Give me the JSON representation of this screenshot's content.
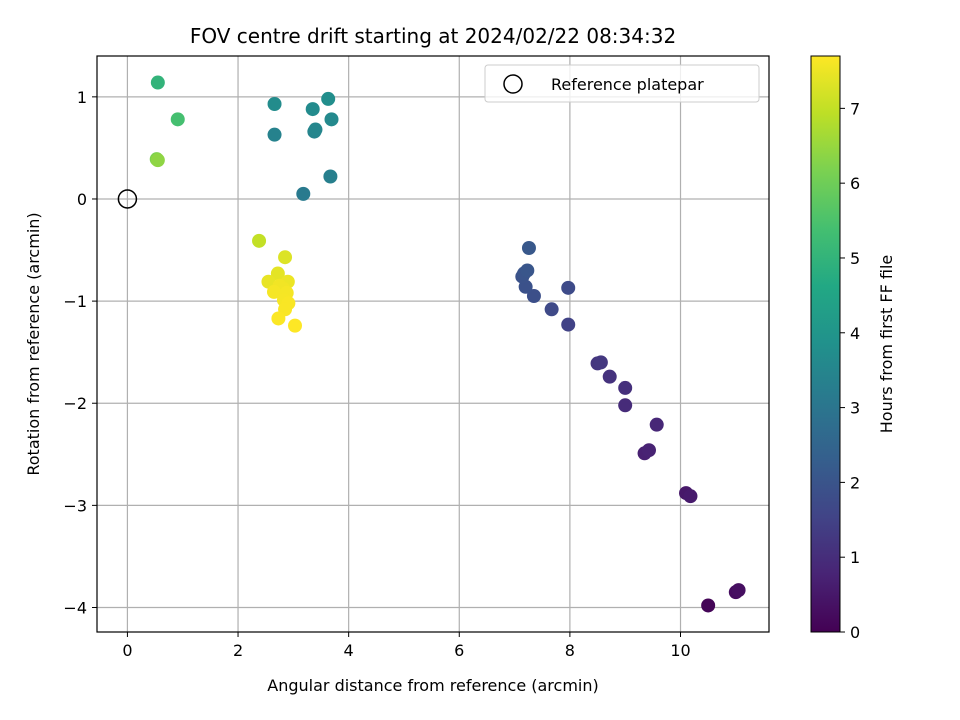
{
  "chart_data": {
    "type": "scatter",
    "title": "FOV centre drift starting at 2024/02/22 08:34:32",
    "xlabel": "Angular distance from reference (arcmin)",
    "ylabel": "Rotation from reference (arcmin)",
    "xlim": [
      -0.55,
      11.6
    ],
    "ylim": [
      -4.24,
      1.4
    ],
    "xticks": [
      0,
      2,
      4,
      6,
      8,
      10
    ],
    "xtick_labels": [
      "0",
      "2",
      "4",
      "6",
      "8",
      "10"
    ],
    "yticks": [
      1,
      0,
      -1,
      -2,
      -3,
      -4
    ],
    "ytick_labels": [
      "1",
      "0",
      "−1",
      "−2",
      "−3",
      "−4"
    ],
    "grid": true,
    "legend": {
      "position": "upper right",
      "entries": [
        {
          "label": "Reference platepar",
          "marker": "open-circle",
          "color": "#000000"
        }
      ]
    },
    "reference_point": {
      "x": 0,
      "y": 0
    },
    "colorbar": {
      "label": "Hours from first FF file",
      "colormap": "viridis",
      "range": [
        0,
        7.7
      ],
      "ticks": [
        0,
        1,
        2,
        3,
        4,
        5,
        6,
        7
      ]
    },
    "points": [
      {
        "x": 10.5,
        "y": -3.98,
        "c": 0.08
      },
      {
        "x": 11.0,
        "y": -3.85,
        "c": 0.25
      },
      {
        "x": 11.05,
        "y": -3.83,
        "c": 0.3
      },
      {
        "x": 10.1,
        "y": -2.88,
        "c": 0.5
      },
      {
        "x": 10.18,
        "y": -2.91,
        "c": 0.55
      },
      {
        "x": 9.35,
        "y": -2.49,
        "c": 0.7
      },
      {
        "x": 9.43,
        "y": -2.46,
        "c": 0.75
      },
      {
        "x": 9.57,
        "y": -2.21,
        "c": 0.85
      },
      {
        "x": 9.0,
        "y": -2.02,
        "c": 0.95
      },
      {
        "x": 9.0,
        "y": -1.85,
        "c": 1.05
      },
      {
        "x": 8.72,
        "y": -1.74,
        "c": 1.1
      },
      {
        "x": 8.5,
        "y": -1.61,
        "c": 1.2
      },
      {
        "x": 8.56,
        "y": -1.6,
        "c": 1.25
      },
      {
        "x": 7.97,
        "y": -1.23,
        "c": 1.5
      },
      {
        "x": 7.67,
        "y": -1.08,
        "c": 1.7
      },
      {
        "x": 7.97,
        "y": -0.87,
        "c": 1.75
      },
      {
        "x": 7.35,
        "y": -0.95,
        "c": 1.85
      },
      {
        "x": 7.2,
        "y": -0.86,
        "c": 1.9
      },
      {
        "x": 7.14,
        "y": -0.76,
        "c": 1.95
      },
      {
        "x": 7.17,
        "y": -0.73,
        "c": 2.0
      },
      {
        "x": 7.23,
        "y": -0.7,
        "c": 2.05
      },
      {
        "x": 7.26,
        "y": -0.48,
        "c": 2.1
      },
      {
        "x": 3.18,
        "y": 0.05,
        "c": 3.15
      },
      {
        "x": 3.67,
        "y": 0.22,
        "c": 3.3
      },
      {
        "x": 2.66,
        "y": 0.63,
        "c": 3.4
      },
      {
        "x": 3.38,
        "y": 0.66,
        "c": 3.45
      },
      {
        "x": 3.4,
        "y": 0.68,
        "c": 3.5
      },
      {
        "x": 3.69,
        "y": 0.78,
        "c": 3.6
      },
      {
        "x": 3.35,
        "y": 0.88,
        "c": 3.65
      },
      {
        "x": 2.66,
        "y": 0.93,
        "c": 3.7
      },
      {
        "x": 3.63,
        "y": 0.98,
        "c": 3.75
      },
      {
        "x": 0.55,
        "y": 1.14,
        "c": 5.0
      },
      {
        "x": 0.91,
        "y": 0.78,
        "c": 5.4
      },
      {
        "x": 0.53,
        "y": 0.39,
        "c": 6.2
      },
      {
        "x": 0.55,
        "y": 0.38,
        "c": 6.4
      },
      {
        "x": 2.38,
        "y": -0.41,
        "c": 7.0
      },
      {
        "x": 2.85,
        "y": -0.57,
        "c": 7.3
      },
      {
        "x": 2.72,
        "y": -0.73,
        "c": 7.4
      },
      {
        "x": 2.55,
        "y": -0.81,
        "c": 7.45
      },
      {
        "x": 2.9,
        "y": -0.81,
        "c": 7.5
      },
      {
        "x": 2.75,
        "y": -0.85,
        "c": 7.55
      },
      {
        "x": 2.82,
        "y": -0.88,
        "c": 7.55
      },
      {
        "x": 2.65,
        "y": -0.91,
        "c": 7.6
      },
      {
        "x": 2.88,
        "y": -0.92,
        "c": 7.6
      },
      {
        "x": 2.83,
        "y": -0.99,
        "c": 7.62
      },
      {
        "x": 2.91,
        "y": -1.02,
        "c": 7.65
      },
      {
        "x": 2.85,
        "y": -1.08,
        "c": 7.65
      },
      {
        "x": 2.73,
        "y": -1.17,
        "c": 7.68
      },
      {
        "x": 3.03,
        "y": -1.24,
        "c": 7.7
      }
    ]
  }
}
